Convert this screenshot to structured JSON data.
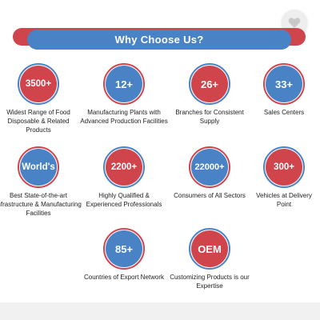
{
  "colors": {
    "red": "#d0454c",
    "blue": "#4a82c6"
  },
  "favorite": {
    "icon": "heart-icon"
  },
  "banner": {
    "title": "Why Choose Us?"
  },
  "items": [
    {
      "value": "3500+",
      "caption": "Widest Range of Food Disposable & Related Products"
    },
    {
      "value": "12+",
      "caption": "Manufacturing Plants with Advanced Production Facilities"
    },
    {
      "value": "26+",
      "caption": "Branches for Consistent Supply"
    },
    {
      "value": "33+",
      "caption": "Sales Centers"
    },
    {
      "value": "World's",
      "caption": "Best State-of-the-art Infrastructure & Manufacturing Facilities"
    },
    {
      "value": "2200+",
      "caption": "Highly Qualified & Experienced Professionals"
    },
    {
      "value": "22000+",
      "caption": "Consumers of All Sectors"
    },
    {
      "value": "300+",
      "caption": "Vehicles at Delivery Point"
    },
    {
      "value": "85+",
      "caption": "Countries of Export Network"
    },
    {
      "value": "OEM",
      "caption": "Customizing Products is our Expertise"
    }
  ]
}
